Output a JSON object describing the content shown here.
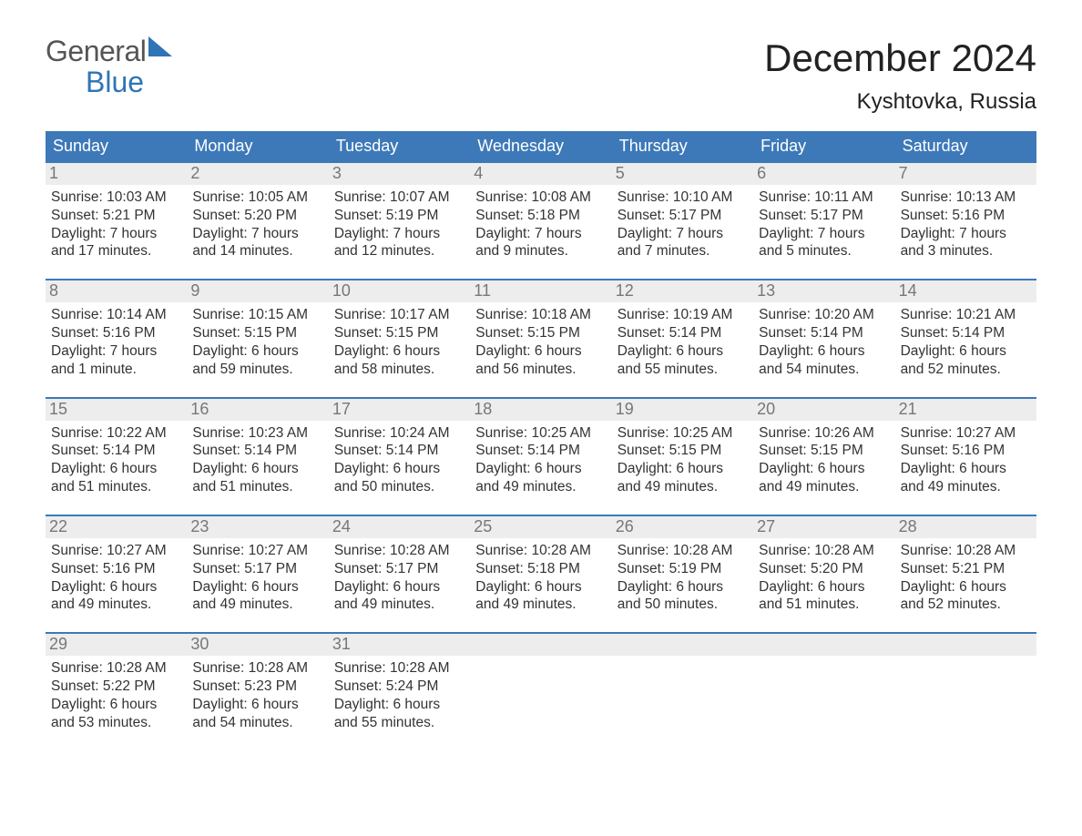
{
  "logo": {
    "general": "General",
    "blue": "Blue"
  },
  "title": "December 2024",
  "location": "Kyshtovka, Russia",
  "colors": {
    "header_bg": "#3d79b8",
    "header_text": "#ffffff",
    "daynum_bg": "#ededed",
    "daynum_text": "#777777",
    "body_text": "#333333",
    "logo_blue": "#2e75b6",
    "logo_grey": "#555555",
    "border": "#3d79b8",
    "background": "#ffffff"
  },
  "dow": [
    "Sunday",
    "Monday",
    "Tuesday",
    "Wednesday",
    "Thursday",
    "Friday",
    "Saturday"
  ],
  "weeks": [
    [
      {
        "n": "1",
        "sr": "Sunrise: 10:03 AM",
        "ss": "Sunset: 5:21 PM",
        "d1": "Daylight: 7 hours",
        "d2": "and 17 minutes."
      },
      {
        "n": "2",
        "sr": "Sunrise: 10:05 AM",
        "ss": "Sunset: 5:20 PM",
        "d1": "Daylight: 7 hours",
        "d2": "and 14 minutes."
      },
      {
        "n": "3",
        "sr": "Sunrise: 10:07 AM",
        "ss": "Sunset: 5:19 PM",
        "d1": "Daylight: 7 hours",
        "d2": "and 12 minutes."
      },
      {
        "n": "4",
        "sr": "Sunrise: 10:08 AM",
        "ss": "Sunset: 5:18 PM",
        "d1": "Daylight: 7 hours",
        "d2": "and 9 minutes."
      },
      {
        "n": "5",
        "sr": "Sunrise: 10:10 AM",
        "ss": "Sunset: 5:17 PM",
        "d1": "Daylight: 7 hours",
        "d2": "and 7 minutes."
      },
      {
        "n": "6",
        "sr": "Sunrise: 10:11 AM",
        "ss": "Sunset: 5:17 PM",
        "d1": "Daylight: 7 hours",
        "d2": "and 5 minutes."
      },
      {
        "n": "7",
        "sr": "Sunrise: 10:13 AM",
        "ss": "Sunset: 5:16 PM",
        "d1": "Daylight: 7 hours",
        "d2": "and 3 minutes."
      }
    ],
    [
      {
        "n": "8",
        "sr": "Sunrise: 10:14 AM",
        "ss": "Sunset: 5:16 PM",
        "d1": "Daylight: 7 hours",
        "d2": "and 1 minute."
      },
      {
        "n": "9",
        "sr": "Sunrise: 10:15 AM",
        "ss": "Sunset: 5:15 PM",
        "d1": "Daylight: 6 hours",
        "d2": "and 59 minutes."
      },
      {
        "n": "10",
        "sr": "Sunrise: 10:17 AM",
        "ss": "Sunset: 5:15 PM",
        "d1": "Daylight: 6 hours",
        "d2": "and 58 minutes."
      },
      {
        "n": "11",
        "sr": "Sunrise: 10:18 AM",
        "ss": "Sunset: 5:15 PM",
        "d1": "Daylight: 6 hours",
        "d2": "and 56 minutes."
      },
      {
        "n": "12",
        "sr": "Sunrise: 10:19 AM",
        "ss": "Sunset: 5:14 PM",
        "d1": "Daylight: 6 hours",
        "d2": "and 55 minutes."
      },
      {
        "n": "13",
        "sr": "Sunrise: 10:20 AM",
        "ss": "Sunset: 5:14 PM",
        "d1": "Daylight: 6 hours",
        "d2": "and 54 minutes."
      },
      {
        "n": "14",
        "sr": "Sunrise: 10:21 AM",
        "ss": "Sunset: 5:14 PM",
        "d1": "Daylight: 6 hours",
        "d2": "and 52 minutes."
      }
    ],
    [
      {
        "n": "15",
        "sr": "Sunrise: 10:22 AM",
        "ss": "Sunset: 5:14 PM",
        "d1": "Daylight: 6 hours",
        "d2": "and 51 minutes."
      },
      {
        "n": "16",
        "sr": "Sunrise: 10:23 AM",
        "ss": "Sunset: 5:14 PM",
        "d1": "Daylight: 6 hours",
        "d2": "and 51 minutes."
      },
      {
        "n": "17",
        "sr": "Sunrise: 10:24 AM",
        "ss": "Sunset: 5:14 PM",
        "d1": "Daylight: 6 hours",
        "d2": "and 50 minutes."
      },
      {
        "n": "18",
        "sr": "Sunrise: 10:25 AM",
        "ss": "Sunset: 5:14 PM",
        "d1": "Daylight: 6 hours",
        "d2": "and 49 minutes."
      },
      {
        "n": "19",
        "sr": "Sunrise: 10:25 AM",
        "ss": "Sunset: 5:15 PM",
        "d1": "Daylight: 6 hours",
        "d2": "and 49 minutes."
      },
      {
        "n": "20",
        "sr": "Sunrise: 10:26 AM",
        "ss": "Sunset: 5:15 PM",
        "d1": "Daylight: 6 hours",
        "d2": "and 49 minutes."
      },
      {
        "n": "21",
        "sr": "Sunrise: 10:27 AM",
        "ss": "Sunset: 5:16 PM",
        "d1": "Daylight: 6 hours",
        "d2": "and 49 minutes."
      }
    ],
    [
      {
        "n": "22",
        "sr": "Sunrise: 10:27 AM",
        "ss": "Sunset: 5:16 PM",
        "d1": "Daylight: 6 hours",
        "d2": "and 49 minutes."
      },
      {
        "n": "23",
        "sr": "Sunrise: 10:27 AM",
        "ss": "Sunset: 5:17 PM",
        "d1": "Daylight: 6 hours",
        "d2": "and 49 minutes."
      },
      {
        "n": "24",
        "sr": "Sunrise: 10:28 AM",
        "ss": "Sunset: 5:17 PM",
        "d1": "Daylight: 6 hours",
        "d2": "and 49 minutes."
      },
      {
        "n": "25",
        "sr": "Sunrise: 10:28 AM",
        "ss": "Sunset: 5:18 PM",
        "d1": "Daylight: 6 hours",
        "d2": "and 49 minutes."
      },
      {
        "n": "26",
        "sr": "Sunrise: 10:28 AM",
        "ss": "Sunset: 5:19 PM",
        "d1": "Daylight: 6 hours",
        "d2": "and 50 minutes."
      },
      {
        "n": "27",
        "sr": "Sunrise: 10:28 AM",
        "ss": "Sunset: 5:20 PM",
        "d1": "Daylight: 6 hours",
        "d2": "and 51 minutes."
      },
      {
        "n": "28",
        "sr": "Sunrise: 10:28 AM",
        "ss": "Sunset: 5:21 PM",
        "d1": "Daylight: 6 hours",
        "d2": "and 52 minutes."
      }
    ],
    [
      {
        "n": "29",
        "sr": "Sunrise: 10:28 AM",
        "ss": "Sunset: 5:22 PM",
        "d1": "Daylight: 6 hours",
        "d2": "and 53 minutes."
      },
      {
        "n": "30",
        "sr": "Sunrise: 10:28 AM",
        "ss": "Sunset: 5:23 PM",
        "d1": "Daylight: 6 hours",
        "d2": "and 54 minutes."
      },
      {
        "n": "31",
        "sr": "Sunrise: 10:28 AM",
        "ss": "Sunset: 5:24 PM",
        "d1": "Daylight: 6 hours",
        "d2": "and 55 minutes."
      },
      {
        "n": "",
        "sr": "",
        "ss": "",
        "d1": "",
        "d2": ""
      },
      {
        "n": "",
        "sr": "",
        "ss": "",
        "d1": "",
        "d2": ""
      },
      {
        "n": "",
        "sr": "",
        "ss": "",
        "d1": "",
        "d2": ""
      },
      {
        "n": "",
        "sr": "",
        "ss": "",
        "d1": "",
        "d2": ""
      }
    ]
  ]
}
